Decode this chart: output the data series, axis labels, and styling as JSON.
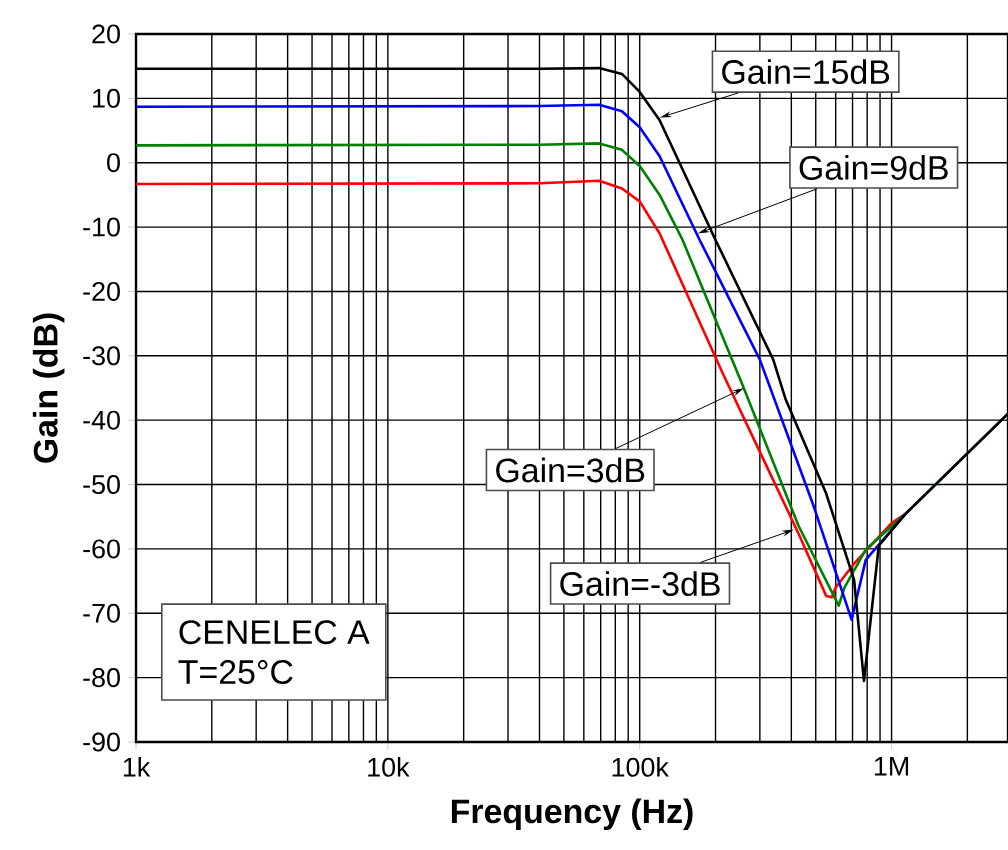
{
  "chart_data": {
    "type": "line",
    "xlabel": "Frequency (Hz)",
    "ylabel": "Gain (dB)",
    "log": "x",
    "xlim": [
      1000,
      2900000
    ],
    "ylim": [
      -90,
      20
    ],
    "xticks": [
      {
        "value": 1000,
        "label": "1k"
      },
      {
        "value": 10000,
        "label": "10k"
      },
      {
        "value": 100000,
        "label": "100k"
      },
      {
        "value": 1000000,
        "label": "1M"
      }
    ],
    "yticks": [
      -90,
      -80,
      -70,
      -60,
      -50,
      -40,
      -30,
      -20,
      -10,
      0,
      10,
      20
    ],
    "grid": true,
    "marker": "none",
    "line_style": "solid",
    "series": [
      {
        "color": "#000000",
        "x": [
          1000,
          40000,
          69000,
          85000,
          100000,
          120000,
          200000,
          339000,
          380000,
          550000,
          710000,
          777000,
          890000,
          1140000,
          2900000
        ],
        "values": [
          14.6,
          14.6,
          14.7,
          13.8,
          11,
          6.6,
          -12,
          -30.6,
          -36.8,
          -51.4,
          -64.8,
          -80.5,
          -59.5,
          -54.5,
          -39
        ]
      },
      {
        "color": "#0000ff",
        "x": [
          1000,
          40000,
          69000,
          85000,
          100000,
          120000,
          173000,
          300000,
          490000,
          694000,
          790000,
          1140000
        ],
        "values": [
          8.7,
          8.8,
          9,
          8,
          5.5,
          1,
          -12,
          -30.6,
          -53.3,
          -71,
          -61.7,
          -54.5
        ]
      },
      {
        "color": "#008000",
        "x": [
          1000,
          40000,
          69000,
          85000,
          100000,
          120000,
          148000,
          257000,
          427000,
          617000,
          650000,
          790000,
          1140000,
          2900000
        ],
        "values": [
          2.7,
          2.8,
          3,
          2,
          -0.5,
          -5,
          -12,
          -34.7,
          -56.4,
          -68.8,
          -66,
          -60.1,
          -54.5,
          -39
        ]
      },
      {
        "color": "#ff0000",
        "x": [
          1000,
          40000,
          69000,
          85000,
          100000,
          120000,
          214000,
          427000,
          550000,
          580000,
          600000,
          710000,
          1000000,
          1140000
        ],
        "values": [
          -3.3,
          -3.2,
          -2.8,
          -4,
          -6,
          -11,
          -32.8,
          -57.6,
          -67.3,
          -67.5,
          -66,
          -62.3,
          -56,
          -54.5
        ]
      }
    ],
    "annotations": [
      {
        "text": "Gain=15dB",
        "x": 120000,
        "y": 7
      },
      {
        "text": "Gain=9dB",
        "x": 170000,
        "y": -11
      },
      {
        "text": "Gain=3dB",
        "x": 260000,
        "y": -35
      },
      {
        "text": "Gain=-3dB",
        "x": 410000,
        "y": -57
      },
      "CENELEC A",
      "T=25°C"
    ]
  }
}
